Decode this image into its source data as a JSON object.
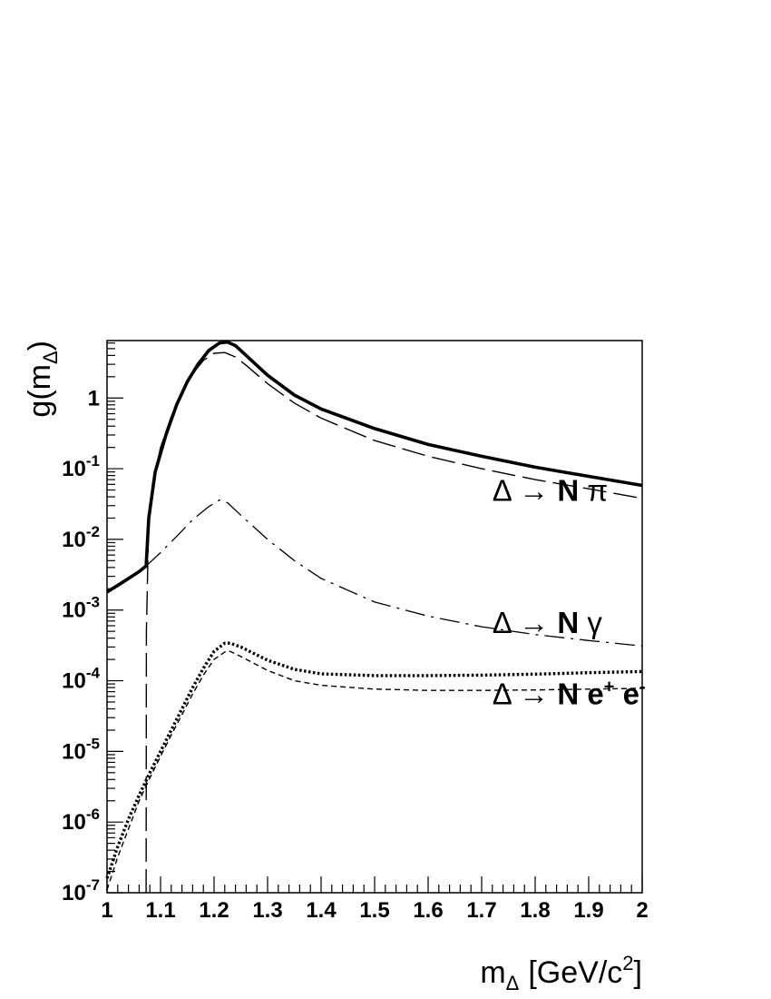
{
  "chart_data": {
    "type": "line",
    "xlabel": {
      "base": "m",
      "sub": "Δ",
      "unit_prefix": "[GeV/c",
      "unit_sup": "2",
      "unit_suffix": "]"
    },
    "ylabel": {
      "base": "g(m",
      "sub": "Δ",
      "suffix": ")"
    },
    "xlim": [
      1,
      2
    ],
    "ylim": [
      1e-07,
      6.5
    ],
    "y_scale": "log",
    "grid": false,
    "x_ticks": [
      "1",
      "1.1",
      "1.2",
      "1.3",
      "1.4",
      "1.5",
      "1.6",
      "1.7",
      "1.8",
      "1.9",
      "2"
    ],
    "y_ticks": [
      {
        "base": "10",
        "exp": "-7"
      },
      {
        "base": "10",
        "exp": "-6"
      },
      {
        "base": "10",
        "exp": "-5"
      },
      {
        "base": "10",
        "exp": "-4"
      },
      {
        "base": "10",
        "exp": "-3"
      },
      {
        "base": "10",
        "exp": "-2"
      },
      {
        "base": "10",
        "exp": "-1"
      },
      {
        "base": "1",
        "exp": ""
      }
    ],
    "annotations": [
      {
        "text": "Δ → N π",
        "parts": [
          "Δ → ",
          "N",
          " π"
        ],
        "x": 1.72,
        "y": 0.05
      },
      {
        "text": "Δ → N γ",
        "parts": [
          "Δ → ",
          "N",
          " γ"
        ],
        "x": 1.72,
        "y": 0.00068
      },
      {
        "text": "Δ → N e+ e-",
        "parts": [
          "Δ → ",
          "N e",
          "+",
          " e",
          "-"
        ],
        "x": 1.72,
        "y": 6.6e-05
      }
    ],
    "series": [
      {
        "style": "solid-thick",
        "x": [
          1.0,
          1.03,
          1.06,
          1.073,
          1.078,
          1.09,
          1.11,
          1.13,
          1.15,
          1.17,
          1.19,
          1.21,
          1.225,
          1.24,
          1.26,
          1.3,
          1.35,
          1.4,
          1.5,
          1.6,
          1.7,
          1.8,
          1.9,
          2.0
        ],
        "y": [
          0.0018,
          0.0025,
          0.0035,
          0.0042,
          0.02,
          0.09,
          0.3,
          0.8,
          1.7,
          3.0,
          4.7,
          6.0,
          6.2,
          5.5,
          4.0,
          2.1,
          1.1,
          0.7,
          0.37,
          0.22,
          0.15,
          0.105,
          0.078,
          0.058
        ]
      },
      {
        "style": "long-dash",
        "x": [
          1.073,
          1.0735,
          1.078,
          1.085,
          1.1,
          1.12,
          1.14,
          1.16,
          1.18,
          1.2,
          1.22,
          1.24,
          1.26,
          1.3,
          1.35,
          1.4,
          1.5,
          1.6,
          1.7,
          1.8,
          1.9,
          2.0
        ],
        "y": [
          1e-07,
          0.0005,
          0.02,
          0.06,
          0.2,
          0.55,
          1.2,
          2.2,
          3.4,
          4.3,
          4.4,
          3.8,
          2.9,
          1.6,
          0.85,
          0.52,
          0.25,
          0.15,
          0.1,
          0.07,
          0.052,
          0.038
        ]
      },
      {
        "style": "dash-dot",
        "x": [
          1.073,
          1.1,
          1.13,
          1.16,
          1.19,
          1.21,
          1.225,
          1.25,
          1.3,
          1.35,
          1.4,
          1.5,
          1.6,
          1.7,
          1.8,
          1.9,
          2.0
        ],
        "y": [
          0.0042,
          0.0065,
          0.011,
          0.019,
          0.029,
          0.036,
          0.033,
          0.022,
          0.01,
          0.005,
          0.0028,
          0.0013,
          0.00082,
          0.00058,
          0.00045,
          0.00037,
          0.00031
        ]
      },
      {
        "style": "dotted",
        "x": [
          1.0,
          1.02,
          1.04,
          1.06,
          1.08,
          1.1,
          1.12,
          1.14,
          1.16,
          1.18,
          1.2,
          1.22,
          1.23,
          1.25,
          1.3,
          1.35,
          1.4,
          1.5,
          1.6,
          1.7,
          1.8,
          1.9,
          2.0
        ],
        "y": [
          1.6e-07,
          4.5e-07,
          1.1e-06,
          2.4e-06,
          5e-06,
          1e-05,
          2e-05,
          4e-05,
          8e-05,
          0.00015,
          0.00026,
          0.00034,
          0.00034,
          0.0003,
          0.000195,
          0.000145,
          0.000125,
          0.000118,
          0.000118,
          0.00012,
          0.000124,
          0.00013,
          0.000135
        ]
      },
      {
        "style": "short-dash",
        "x": [
          1.0,
          1.02,
          1.04,
          1.06,
          1.08,
          1.1,
          1.12,
          1.14,
          1.16,
          1.18,
          1.2,
          1.22,
          1.23,
          1.25,
          1.3,
          1.35,
          1.4,
          1.5,
          1.6,
          1.7,
          1.8,
          1.9,
          2.0
        ],
        "y": [
          1.1e-07,
          3.2e-07,
          8e-07,
          2e-06,
          4.2e-06,
          8.5e-06,
          1.7e-05,
          3.3e-05,
          6.5e-05,
          0.00012,
          0.0002,
          0.000255,
          0.00026,
          0.00022,
          0.00014,
          0.0001,
          8.6e-05,
          7.6e-05,
          7.3e-05,
          7.3e-05,
          7.4e-05,
          7.6e-05,
          7.8e-05
        ]
      }
    ]
  }
}
